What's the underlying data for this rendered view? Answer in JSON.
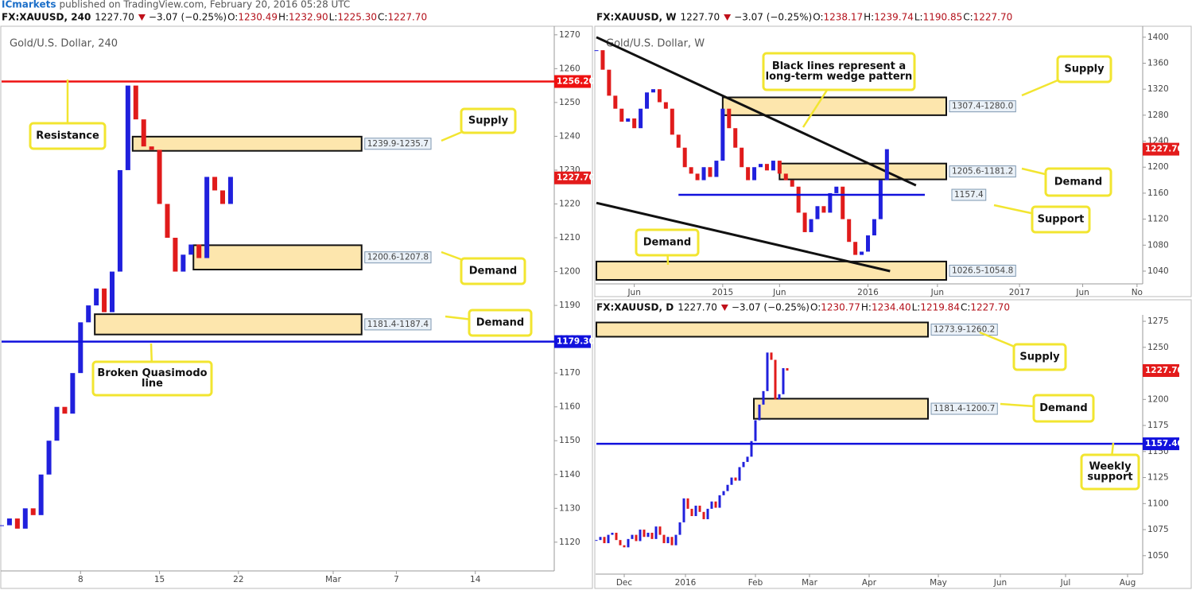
{
  "page_header": {
    "publisher": "ICmarkets",
    "text": "published on TradingView.com, February 20, 2016 05:28 UTC"
  },
  "chart_data": [
    {
      "type": "candlestick",
      "title": "Gold/U.S. Dollar, 240",
      "header": {
        "symbol": "FX:XAUUSD, 240",
        "last": "1227.70",
        "change": "−3.07 (−0.25%)",
        "ohlc": [
          {
            "k": "O:",
            "v": "1230.49"
          },
          {
            "k": "H:",
            "v": "1232.90"
          },
          {
            "k": "L:",
            "v": "1225.30"
          },
          {
            "k": "C:",
            "v": "1227.70"
          }
        ]
      },
      "values": [
        1125,
        1127,
        1124,
        1130,
        1128,
        1140,
        1150,
        1160,
        1158,
        1170,
        1185,
        1190,
        1195,
        1188,
        1200,
        1230,
        1255,
        1245,
        1237,
        1236,
        1220,
        1210,
        1200,
        1205,
        1208,
        1204,
        1228,
        1224,
        1220,
        1228
      ],
      "xlim": [
        0,
        70
      ],
      "ylim": [
        1111.5,
        1271.6
      ],
      "yticks": [
        1120,
        1130,
        1140,
        1150,
        1160,
        1170,
        1180,
        1190,
        1200,
        1210,
        1220,
        1230,
        1240,
        1250,
        1260,
        1270
      ],
      "xticks": [
        {
          "value": 10,
          "label": "8"
        },
        {
          "value": 20,
          "label": "15"
        },
        {
          "value": 30,
          "label": "22"
        },
        {
          "value": 42,
          "label": "Mar"
        },
        {
          "value": 50,
          "label": "7"
        },
        {
          "value": 60,
          "label": "14"
        }
      ],
      "zones": [
        {
          "low": 1235.7,
          "high": 1239.9,
          "start": 16.6,
          "end": 45.6,
          "label": "1239.9-1235.7"
        },
        {
          "low": 1200.6,
          "high": 1207.8,
          "start": 24.3,
          "end": 45.6,
          "label": "1200.6-1207.8"
        },
        {
          "low": 1181.4,
          "high": 1187.4,
          "start": 11.8,
          "end": 45.6,
          "label": "1181.4-1187.4"
        }
      ],
      "lines": [
        {
          "value": 1256.2,
          "color": "#ee1111",
          "tag": "1256.20"
        },
        {
          "value": 1179.3,
          "color": "#1111dd",
          "tag": "1179.30"
        }
      ],
      "last_tag": {
        "value": 1227.7,
        "label": "1227.70",
        "color": "#e31b1b"
      },
      "trendlines": [],
      "callouts": [
        [
          "Resistance"
        ],
        [
          "Supply"
        ],
        [
          "Demand"
        ],
        [
          "Demand"
        ],
        [
          "Broken Quasimodo",
          "line"
        ]
      ]
    },
    {
      "type": "candlestick",
      "title": "Gold/U.S. Dollar, W",
      "header": {
        "symbol": "FX:XAUUSD, W",
        "last": "1227.70",
        "change": "−3.07 (−0.25%)",
        "ohlc": [
          {
            "k": "O:",
            "v": "1238.17"
          },
          {
            "k": "H:",
            "v": "1239.74"
          },
          {
            "k": "L:",
            "v": "1190.85"
          },
          {
            "k": "C:",
            "v": "1227.70"
          }
        ]
      },
      "values": [
        1380,
        1350,
        1310,
        1290,
        1270,
        1275,
        1260,
        1290,
        1315,
        1320,
        1300,
        1290,
        1250,
        1230,
        1200,
        1190,
        1180,
        1200,
        1185,
        1210,
        1290,
        1260,
        1230,
        1200,
        1180,
        1200,
        1205,
        1195,
        1210,
        1190,
        1180,
        1170,
        1130,
        1100,
        1120,
        1140,
        1130,
        1160,
        1170,
        1120,
        1085,
        1065,
        1070,
        1095,
        1120,
        1180,
        1227.7
      ],
      "xlim": [
        0,
        86.5
      ],
      "ylim": [
        1020.4,
        1412
      ],
      "yticks": [
        1040,
        1080,
        1120,
        1160,
        1200,
        1240,
        1280,
        1320,
        1360,
        1400
      ],
      "xticks": [
        {
          "value": 6,
          "label": "Jun"
        },
        {
          "value": 20,
          "label": "2015"
        },
        {
          "value": 29,
          "label": "Jun"
        },
        {
          "value": 43,
          "label": "2016"
        },
        {
          "value": 54,
          "label": "Jun"
        },
        {
          "value": 67,
          "label": "2017"
        },
        {
          "value": 77,
          "label": "Jun"
        },
        {
          "value": 85.6,
          "label": "No"
        }
      ],
      "zones": [
        {
          "low": 1280.0,
          "high": 1307.4,
          "start": 20,
          "end": 55.4,
          "label": "1307.4-1280.0"
        },
        {
          "low": 1181.2,
          "high": 1205.6,
          "start": 29,
          "end": 55.4,
          "label": "1205.6-1181.2"
        },
        {
          "low": 1026.5,
          "high": 1054.8,
          "start": 0,
          "end": 55.4,
          "label": "1026.5-1054.8"
        }
      ],
      "lines": [
        {
          "value": 1157.4,
          "color": "#1111dd",
          "start": 13,
          "end": 52,
          "label": "1157.4"
        }
      ],
      "last_tag": {
        "value": 1227.7,
        "label": "1227.70",
        "color": "#e31b1b"
      },
      "trendlines": [
        {
          "x": [
            0,
            50.6
          ],
          "y": [
            1400,
            1172
          ]
        },
        {
          "x": [
            0,
            46.5
          ],
          "y": [
            1145,
            1040
          ]
        }
      ],
      "callouts": [
        [
          "Black lines represent a",
          "long-term wedge pattern"
        ],
        [
          "Supply"
        ],
        [
          "Demand"
        ],
        [
          "Support"
        ],
        [
          "Demand"
        ]
      ]
    },
    {
      "type": "candlestick",
      "title": "Gold/U.S. Dollar, D",
      "header": {
        "symbol": "FX:XAUUSD, D",
        "last": "1227.70",
        "change": "−3.07 (−0.25%)",
        "ohlc": [
          {
            "k": "O:",
            "v": "1230.77"
          },
          {
            "k": "H:",
            "v": "1234.40"
          },
          {
            "k": "L:",
            "v": "1219.84"
          },
          {
            "k": "C:",
            "v": "1227.70"
          }
        ]
      },
      "values": [
        1065,
        1068,
        1062,
        1070,
        1072,
        1065,
        1060,
        1058,
        1066,
        1070,
        1064,
        1075,
        1068,
        1072,
        1066,
        1078,
        1070,
        1062,
        1068,
        1060,
        1070,
        1082,
        1105,
        1095,
        1088,
        1098,
        1092,
        1085,
        1095,
        1102,
        1096,
        1108,
        1112,
        1118,
        1125,
        1122,
        1135,
        1140,
        1145,
        1160,
        1180,
        1195,
        1208,
        1245,
        1238,
        1200,
        1205,
        1230,
        1227.7
      ],
      "xlim": [
        0,
        137.4
      ],
      "ylim": [
        1032.3,
        1278.1
      ],
      "yticks": [
        1050,
        1075,
        1100,
        1125,
        1150,
        1175,
        1200,
        1225,
        1250,
        1275
      ],
      "xticks": [
        {
          "value": 7,
          "label": "Dec"
        },
        {
          "value": 22.4,
          "label": "2016"
        },
        {
          "value": 40,
          "label": "Feb"
        },
        {
          "value": 53.6,
          "label": "Mar"
        },
        {
          "value": 68.6,
          "label": "Apr"
        },
        {
          "value": 86,
          "label": "May"
        },
        {
          "value": 101.6,
          "label": "Jun"
        },
        {
          "value": 118,
          "label": "Jul"
        },
        {
          "value": 133.6,
          "label": "Aug"
        }
      ],
      "zones": [
        {
          "low": 1260.2,
          "high": 1273.9,
          "start": 0,
          "end": 83.4,
          "label": "1273.9-1260.2"
        },
        {
          "low": 1181.4,
          "high": 1200.7,
          "start": 39.6,
          "end": 83.4,
          "label": "1181.4-1200.7"
        }
      ],
      "lines": [
        {
          "value": 1157.4,
          "color": "#1111dd",
          "tag": "1157.40"
        }
      ],
      "last_tag": {
        "value": 1227.7,
        "label": "1227.70",
        "color": "#e31b1b"
      },
      "trendlines": [],
      "callouts": [
        [
          "Supply"
        ],
        [
          "Demand"
        ],
        [
          "Weekly",
          "support"
        ]
      ]
    }
  ]
}
